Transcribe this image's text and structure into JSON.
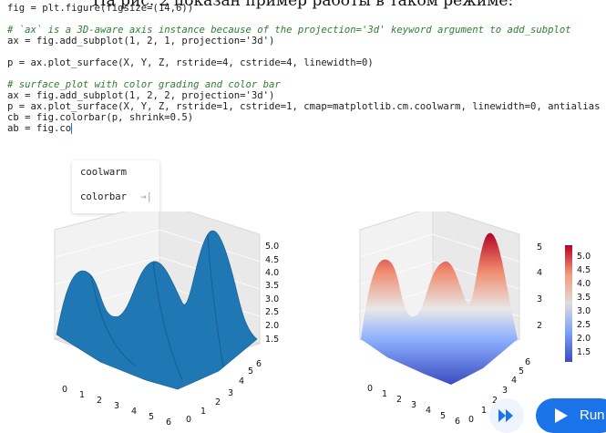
{
  "caption": "На рис. 2 показан пример работы в таком режиме:",
  "code_lines": [
    "fig = plt.figure(figsize=(14,6))",
    "",
    "# `ax` is a 3D-aware axis instance because of the projection='3d' keyword argument to add_subplot",
    "ax = fig.add_subplot(1, 2, 1, projection='3d')",
    "",
    "p = ax.plot_surface(X, Y, Z, rstride=4, cstride=4, linewidth=0)",
    "",
    "# surface_plot with color grading and color bar",
    "ax = fig.add_subplot(1, 2, 2, projection='3d')",
    "p = ax.plot_surface(X, Y, Z, rstride=1, cstride=1, cmap=matplotlib.cm.coolwarm, linewidth=0, antialias",
    "cb = fig.colorbar(p, shrink=0.5)",
    "ab = fig.co"
  ],
  "autocomplete": {
    "items": [
      "coolwarm",
      "colorbar"
    ],
    "tab_hint": "→|"
  },
  "plot_left": {
    "z_ticks": [
      "5.0",
      "4.5",
      "4.0",
      "3.5",
      "3.0",
      "2.5",
      "2.0",
      "1.5"
    ],
    "x_ticks": [
      "0",
      "1",
      "2",
      "3",
      "4",
      "5",
      "6"
    ],
    "y_ticks": [
      "0",
      "1",
      "2",
      "3",
      "4",
      "5",
      "6"
    ],
    "surface_color": "#1f77b4"
  },
  "plot_right": {
    "z_ticks": [
      "5",
      "4",
      "3",
      "2"
    ],
    "x_ticks": [
      "0",
      "1",
      "2",
      "3",
      "4",
      "5",
      "6"
    ],
    "y_ticks": [
      "0",
      "1",
      "2",
      "3",
      "4",
      "5",
      "6"
    ],
    "colorbar_ticks": [
      "5.0",
      "4.5",
      "4.0",
      "3.5",
      "3.0",
      "2.5",
      "2.0",
      "1.5"
    ],
    "colormap": "coolwarm"
  },
  "buttons": {
    "run_label": "Run",
    "skip_icon": "fast-forward-icon",
    "run_icon": "play-icon"
  },
  "colors": {
    "accent": "#1a73e8",
    "keyword": "#7a1fa2",
    "number": "#1a7f37",
    "string": "#b3261e",
    "comment": "#2e7d32"
  }
}
